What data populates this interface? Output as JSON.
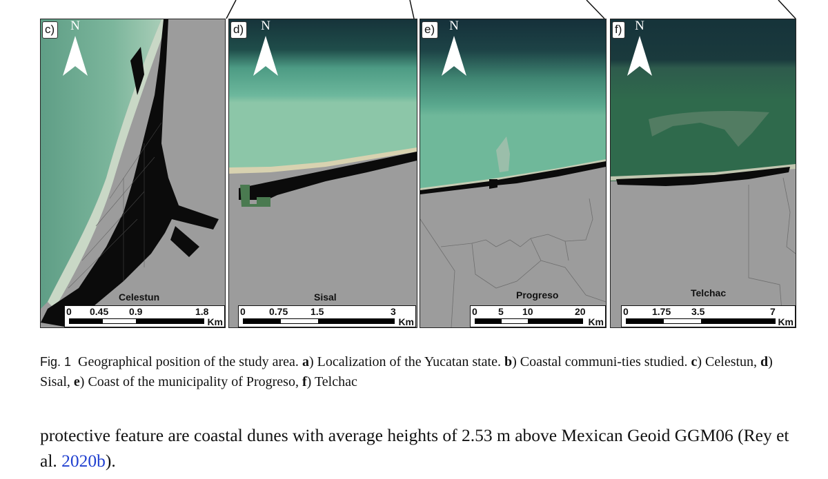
{
  "panels": [
    {
      "label": "c)",
      "place": "Celestun",
      "north": "N",
      "scale_ticks": [
        "0",
        "0.45",
        "0.9",
        "1.8"
      ],
      "scale_unit": "Km"
    },
    {
      "label": "d)",
      "place": "Sisal",
      "north": "N",
      "scale_ticks": [
        "0",
        "0.75",
        "1.5",
        "3"
      ],
      "scale_unit": "Km"
    },
    {
      "label": "e)",
      "place": "Progreso",
      "north": "N",
      "scale_ticks": [
        "0",
        "5",
        "10",
        "20"
      ],
      "scale_unit": "Km"
    },
    {
      "label": "f)",
      "place": "Telchac",
      "north": "N",
      "scale_ticks": [
        "0",
        "1.75",
        "3.5",
        "7"
      ],
      "scale_unit": "Km"
    }
  ],
  "caption": {
    "fig_label": "Fig. 1",
    "segments": [
      {
        "text": "Geographical position of the study area. ",
        "bold": false
      },
      {
        "text": "a",
        "bold": true
      },
      {
        "text": ") Localization of the Yucatan state. ",
        "bold": false
      },
      {
        "text": "b",
        "bold": true
      },
      {
        "text": ") Coastal communi-ties studied. ",
        "bold": false
      },
      {
        "text": "c",
        "bold": true
      },
      {
        "text": ") Celestun, ",
        "bold": false
      },
      {
        "text": "d",
        "bold": true
      },
      {
        "text": ") Sisal, ",
        "bold": false
      },
      {
        "text": "e",
        "bold": true
      },
      {
        "text": ") Coast of the municipality of Progreso, ",
        "bold": false
      },
      {
        "text": "f",
        "bold": true
      },
      {
        "text": ") Telchac",
        "bold": false
      }
    ]
  },
  "body_text": {
    "before": "protective feature are coastal dunes with average heights of 2.53 m above Mexican Geoid GGM06 (Rey et al. ",
    "citation": "2020b",
    "after": ")."
  },
  "colors": {
    "land": "#9c9c9c",
    "urban": "#0b0b0b",
    "sea_deep": "#16333a",
    "sea_shallow": "#5aa88e",
    "citation": "#1f3fd0"
  }
}
